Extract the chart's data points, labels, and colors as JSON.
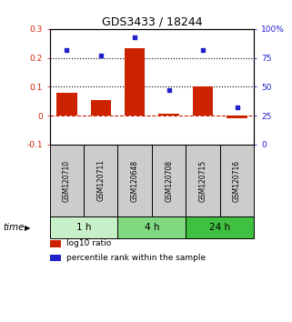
{
  "title": "GDS3433 / 18244",
  "samples": [
    "GSM120710",
    "GSM120711",
    "GSM120648",
    "GSM120708",
    "GSM120715",
    "GSM120716"
  ],
  "log10_ratio": [
    0.08,
    0.055,
    0.235,
    0.008,
    0.1,
    -0.01
  ],
  "percentile_rank": [
    82,
    77,
    93,
    47,
    82,
    32
  ],
  "groups": [
    {
      "label": "1 h",
      "indices": [
        0,
        1
      ],
      "color": "#c8f0c8"
    },
    {
      "label": "4 h",
      "indices": [
        2,
        3
      ],
      "color": "#80d880"
    },
    {
      "label": "24 h",
      "indices": [
        4,
        5
      ],
      "color": "#40c040"
    }
  ],
  "bar_color": "#cc2200",
  "dot_color": "#2222cc",
  "ylim_left": [
    -0.1,
    0.3
  ],
  "ylim_right": [
    0,
    100
  ],
  "yticks_left": [
    -0.1,
    0.0,
    0.1,
    0.2,
    0.3
  ],
  "yticks_right": [
    0,
    25,
    50,
    75,
    100
  ],
  "ytick_labels_left": [
    "-0.1",
    "0",
    "0.1",
    "0.2",
    "0.3"
  ],
  "ytick_labels_right": [
    "0",
    "25",
    "50",
    "75",
    "100%"
  ],
  "legend_items": [
    {
      "color": "#cc2200",
      "label": "log10 ratio"
    },
    {
      "color": "#2222cc",
      "label": "percentile rank within the sample"
    }
  ],
  "background_color": "#ffffff",
  "sample_box_color": "#cccccc",
  "title_fontsize": 9,
  "tick_fontsize": 6.5,
  "legend_fontsize": 6.5,
  "label_fontsize": 7.5,
  "sample_fontsize": 5.5,
  "time_fontsize": 7.5
}
